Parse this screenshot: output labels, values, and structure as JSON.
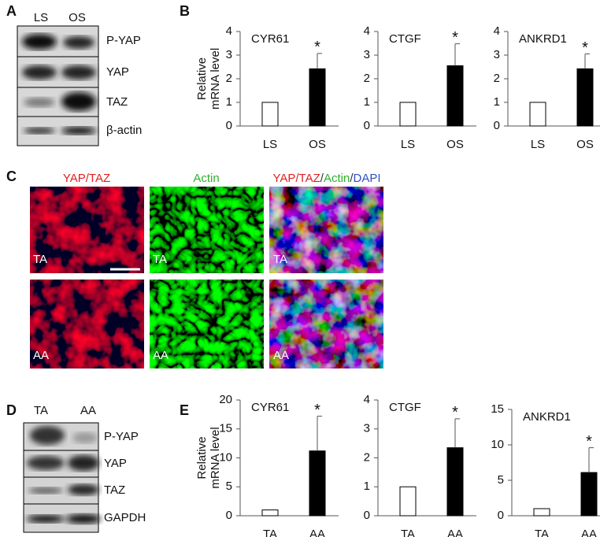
{
  "panels": [
    "A",
    "B",
    "C",
    "D",
    "E"
  ],
  "blot_a": {
    "lanes": [
      "LS",
      "OS"
    ],
    "rows": [
      "P-YAP",
      "YAP",
      "TAZ",
      "β-actin"
    ]
  },
  "blot_d": {
    "lanes": [
      "TA",
      "AA"
    ],
    "rows": [
      "P-YAP",
      "YAP",
      "TAZ",
      "GAPDH"
    ]
  },
  "micrographs": {
    "columns": [
      [
        "YAP/TAZ"
      ],
      [
        "Actin"
      ],
      [
        "YAP/TAZ",
        "/",
        "Actin",
        "/",
        "DAPI"
      ]
    ],
    "rows": [
      "TA",
      "AA"
    ]
  },
  "chart_data": [
    {
      "type": "bar",
      "title": "CYR61",
      "ylabel": [
        "Relative",
        "mRNA level"
      ],
      "categories": [
        "LS",
        "OS"
      ],
      "values": [
        1,
        2.42
      ],
      "errors": [
        null,
        0.65
      ],
      "annotations": [
        null,
        "*"
      ],
      "colors": [
        "#ffffff",
        "#000000"
      ],
      "ylim": [
        0,
        4
      ],
      "yticks": [
        0,
        1,
        2,
        3,
        4
      ]
    },
    {
      "type": "bar",
      "title": "CTGF",
      "categories": [
        "LS",
        "OS"
      ],
      "values": [
        1,
        2.55
      ],
      "errors": [
        null,
        0.93
      ],
      "annotations": [
        null,
        "*"
      ],
      "colors": [
        "#ffffff",
        "#000000"
      ],
      "ylim": [
        0,
        4
      ],
      "yticks": [
        0,
        1,
        2,
        3,
        4
      ]
    },
    {
      "type": "bar",
      "title": "ANKRD1",
      "categories": [
        "LS",
        "OS"
      ],
      "values": [
        1,
        2.42
      ],
      "errors": [
        null,
        0.63
      ],
      "annotations": [
        null,
        "*"
      ],
      "colors": [
        "#ffffff",
        "#000000"
      ],
      "ylim": [
        0,
        4
      ],
      "yticks": [
        0,
        1,
        2,
        3,
        4
      ]
    },
    {
      "type": "bar",
      "title": "CYR61",
      "ylabel": [
        "Relative",
        "mRNA level"
      ],
      "categories": [
        "TA",
        "AA"
      ],
      "values": [
        1,
        11.2
      ],
      "errors": [
        null,
        6.0
      ],
      "annotations": [
        null,
        "*"
      ],
      "colors": [
        "#ffffff",
        "#000000"
      ],
      "ylim": [
        0,
        20
      ],
      "yticks": [
        0,
        5,
        10,
        15,
        20
      ]
    },
    {
      "type": "bar",
      "title": "CTGF",
      "categories": [
        "TA",
        "AA"
      ],
      "values": [
        1,
        2.35
      ],
      "errors": [
        null,
        1.0
      ],
      "annotations": [
        null,
        "*"
      ],
      "colors": [
        "#ffffff",
        "#000000"
      ],
      "ylim": [
        0,
        4
      ],
      "yticks": [
        0,
        1,
        2,
        3,
        4
      ]
    },
    {
      "type": "bar",
      "title": "ANKRD1",
      "categories": [
        "TA",
        "AA"
      ],
      "values": [
        1,
        6.1
      ],
      "errors": [
        null,
        3.5
      ],
      "annotations": [
        null,
        "*"
      ],
      "colors": [
        "#ffffff",
        "#000000"
      ],
      "ylim": [
        0,
        15
      ],
      "yticks": [
        0,
        5,
        10,
        15
      ]
    }
  ]
}
